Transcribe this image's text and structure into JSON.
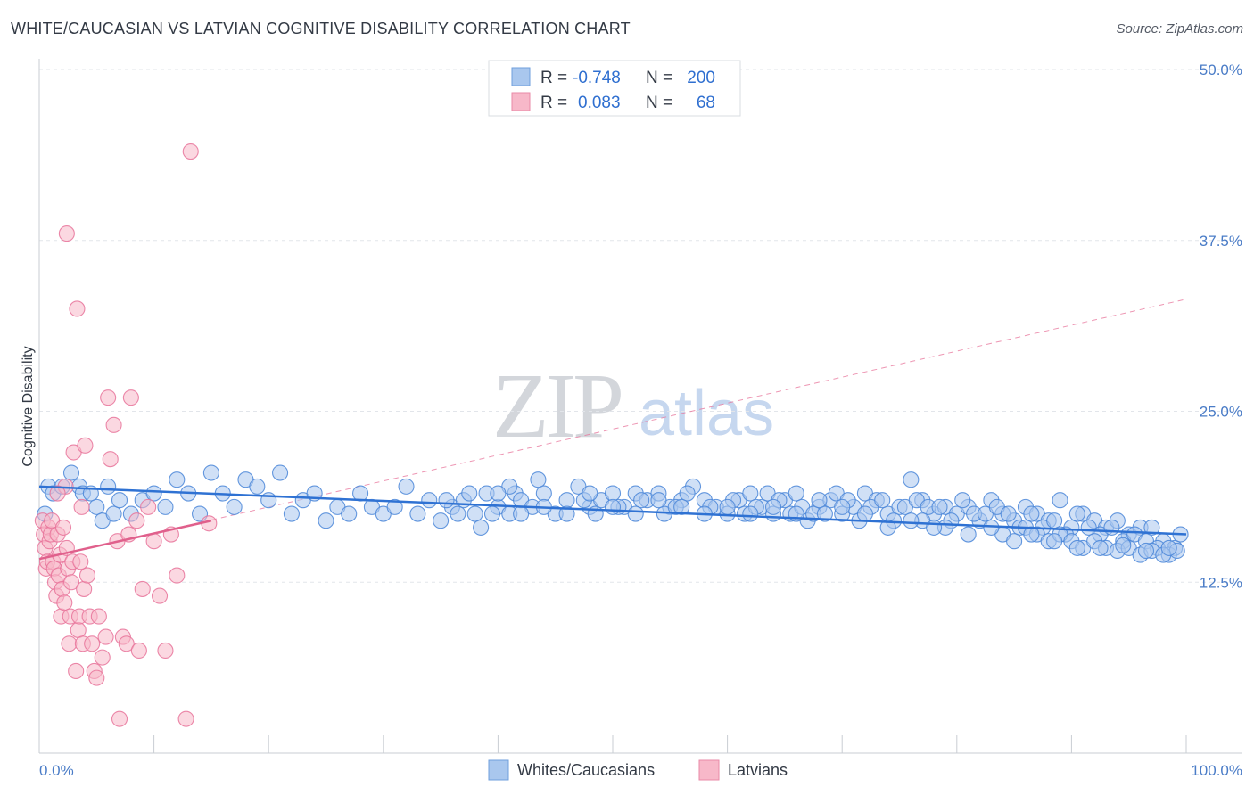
{
  "header": {
    "title": "WHITE/CAUCASIAN VS LATVIAN COGNITIVE DISABILITY CORRELATION CHART",
    "source": "Source: ZipAtlas.com"
  },
  "watermark": {
    "zip": "ZIP",
    "atlas": "atlas"
  },
  "legend": {
    "rows": [
      {
        "r_label": "R =",
        "r_value": "-0.748",
        "n_label": "N =",
        "n_value": "200",
        "color": "#a9c7ee"
      },
      {
        "r_label": "R =",
        "r_value": "0.083",
        "n_label": "N =",
        "n_value": "68",
        "color": "#f7b8c9"
      }
    ]
  },
  "bottom_legend": [
    {
      "label": "Whites/Caucasians",
      "color": "#a9c7ee"
    },
    {
      "label": "Latvians",
      "color": "#f7b8c9"
    }
  ],
  "chart_data": {
    "type": "scatter",
    "title": "WHITE/CAUCASIAN VS LATVIAN COGNITIVE DISABILITY CORRELATION CHART",
    "xlabel": "",
    "ylabel": "Cognitive Disability",
    "xlim": [
      0,
      100
    ],
    "ylim": [
      0,
      50
    ],
    "x_tick_labels": [
      "0.0%",
      "100.0%"
    ],
    "y_ticks": [
      12.5,
      25.0,
      37.5,
      50.0
    ],
    "y_tick_labels": [
      "12.5%",
      "25.0%",
      "37.5%",
      "50.0%"
    ],
    "grid": "horizontal dashed",
    "legend_placement": "top-center",
    "colors": {
      "whites": "#4a86d8",
      "whites_fill": "#a9c7ee",
      "latvians": "#e8739a",
      "latvians_fill": "#f7b8c9"
    },
    "series": [
      {
        "name": "Whites/Caucasians",
        "trend": {
          "x": [
            0,
            100
          ],
          "y": [
            19.5,
            16.0
          ],
          "style": "solid"
        },
        "points": [
          [
            0.5,
            17.5
          ],
          [
            0.8,
            19.5
          ],
          [
            1.2,
            19.0
          ],
          [
            2.0,
            19.5
          ],
          [
            2.8,
            20.5
          ],
          [
            3.5,
            19.5
          ],
          [
            3.8,
            19.0
          ],
          [
            4.5,
            19.0
          ],
          [
            5.0,
            18.0
          ],
          [
            5.5,
            17.0
          ],
          [
            6.0,
            19.5
          ],
          [
            6.5,
            17.5
          ],
          [
            7.0,
            18.5
          ],
          [
            8.0,
            17.5
          ],
          [
            9.0,
            18.5
          ],
          [
            10.0,
            19.0
          ],
          [
            11.0,
            18.0
          ],
          [
            12.0,
            20.0
          ],
          [
            13.0,
            19.0
          ],
          [
            14.0,
            17.5
          ],
          [
            15.0,
            20.5
          ],
          [
            16.0,
            19.0
          ],
          [
            17.0,
            18.0
          ],
          [
            18.0,
            20.0
          ],
          [
            19.0,
            19.5
          ],
          [
            20.0,
            18.5
          ],
          [
            21.0,
            20.5
          ],
          [
            22.0,
            17.5
          ],
          [
            23.0,
            18.5
          ],
          [
            24.0,
            19.0
          ],
          [
            25.0,
            17.0
          ],
          [
            26.0,
            18.0
          ],
          [
            27.0,
            17.5
          ],
          [
            28.0,
            19.0
          ],
          [
            29.0,
            18.0
          ],
          [
            30.0,
            17.5
          ],
          [
            31.0,
            18.0
          ],
          [
            32.0,
            19.5
          ],
          [
            33.0,
            17.5
          ],
          [
            34.0,
            18.5
          ],
          [
            35.0,
            17.0
          ],
          [
            36.0,
            18.0
          ],
          [
            37.0,
            18.5
          ],
          [
            38.0,
            17.5
          ],
          [
            38.5,
            16.5
          ],
          [
            39.0,
            19.0
          ],
          [
            40.0,
            18.0
          ],
          [
            41.0,
            17.5
          ],
          [
            41.5,
            19.0
          ],
          [
            42.0,
            18.5
          ],
          [
            43.0,
            18.0
          ],
          [
            44.0,
            19.0
          ],
          [
            45.0,
            17.5
          ],
          [
            46.0,
            18.5
          ],
          [
            47.0,
            19.5
          ],
          [
            48.0,
            18.0
          ],
          [
            49.0,
            18.5
          ],
          [
            50.0,
            19.0
          ],
          [
            51.0,
            18.0
          ],
          [
            52.0,
            19.0
          ],
          [
            53.0,
            18.5
          ],
          [
            54.0,
            19.0
          ],
          [
            55.0,
            18.0
          ],
          [
            56.0,
            18.5
          ],
          [
            57.0,
            19.5
          ],
          [
            58.0,
            18.5
          ],
          [
            59.0,
            18.0
          ],
          [
            60.0,
            17.5
          ],
          [
            61.0,
            18.5
          ],
          [
            62.0,
            19.0
          ],
          [
            63.0,
            18.0
          ],
          [
            64.0,
            17.5
          ],
          [
            65.0,
            18.5
          ],
          [
            66.0,
            19.0
          ],
          [
            67.0,
            17.0
          ],
          [
            68.0,
            18.0
          ],
          [
            69.0,
            18.5
          ],
          [
            70.0,
            17.5
          ],
          [
            71.0,
            18.0
          ],
          [
            72.0,
            19.0
          ],
          [
            73.0,
            18.5
          ],
          [
            74.0,
            17.5
          ],
          [
            75.0,
            18.0
          ],
          [
            76.0,
            20.0
          ],
          [
            77.0,
            18.5
          ],
          [
            78.0,
            17.5
          ],
          [
            79.0,
            18.0
          ],
          [
            80.0,
            17.5
          ],
          [
            81.0,
            18.0
          ],
          [
            82.0,
            17.0
          ],
          [
            83.0,
            18.5
          ],
          [
            84.0,
            17.5
          ],
          [
            85.0,
            17.0
          ],
          [
            86.0,
            18.0
          ],
          [
            87.0,
            17.5
          ],
          [
            88.0,
            17.0
          ],
          [
            89.0,
            18.5
          ],
          [
            90.0,
            16.5
          ],
          [
            91.0,
            17.5
          ],
          [
            92.0,
            17.0
          ],
          [
            93.0,
            16.5
          ],
          [
            94.0,
            17.0
          ],
          [
            95.0,
            16.0
          ],
          [
            96.0,
            16.5
          ],
          [
            97.0,
            16.5
          ],
          [
            98.0,
            15.5
          ],
          [
            99.0,
            15.0
          ],
          [
            99.5,
            16.0
          ],
          [
            41.0,
            19.5
          ],
          [
            43.5,
            20.0
          ],
          [
            47.5,
            18.5
          ],
          [
            48.5,
            17.5
          ],
          [
            50.5,
            18.0
          ],
          [
            52.5,
            18.5
          ],
          [
            54.5,
            17.5
          ],
          [
            55.5,
            18.0
          ],
          [
            56.5,
            19.0
          ],
          [
            58.5,
            18.0
          ],
          [
            60.5,
            18.5
          ],
          [
            61.5,
            17.5
          ],
          [
            62.5,
            18.0
          ],
          [
            63.5,
            19.0
          ],
          [
            64.5,
            18.5
          ],
          [
            65.5,
            17.5
          ],
          [
            66.5,
            18.0
          ],
          [
            67.5,
            17.5
          ],
          [
            68.5,
            17.5
          ],
          [
            69.5,
            19.0
          ],
          [
            70.5,
            18.5
          ],
          [
            71.5,
            17.0
          ],
          [
            72.5,
            18.0
          ],
          [
            73.5,
            18.5
          ],
          [
            74.5,
            17.0
          ],
          [
            75.5,
            18.0
          ],
          [
            76.5,
            18.5
          ],
          [
            77.5,
            18.0
          ],
          [
            78.5,
            18.0
          ],
          [
            79.5,
            17.0
          ],
          [
            80.5,
            18.5
          ],
          [
            81.5,
            17.5
          ],
          [
            82.5,
            17.5
          ],
          [
            83.5,
            18.0
          ],
          [
            84.5,
            17.5
          ],
          [
            85.5,
            16.5
          ],
          [
            86.5,
            17.5
          ],
          [
            87.5,
            16.5
          ],
          [
            88.5,
            17.0
          ],
          [
            89.5,
            16.0
          ],
          [
            90.5,
            17.5
          ],
          [
            91.5,
            16.5
          ],
          [
            92.5,
            16.0
          ],
          [
            93.5,
            16.5
          ],
          [
            94.5,
            15.5
          ],
          [
            95.5,
            16.0
          ],
          [
            96.5,
            15.5
          ],
          [
            97.5,
            15.0
          ],
          [
            98.5,
            14.5
          ],
          [
            99.2,
            14.8
          ],
          [
            84.0,
            16.0
          ],
          [
            85.0,
            15.5
          ],
          [
            86.0,
            16.5
          ],
          [
            87.0,
            16.0
          ],
          [
            88.0,
            15.5
          ],
          [
            89.0,
            16.0
          ],
          [
            90.0,
            15.5
          ],
          [
            91.0,
            15.0
          ],
          [
            92.0,
            15.5
          ],
          [
            93.0,
            15.0
          ],
          [
            94.0,
            14.8
          ],
          [
            95.0,
            15.0
          ],
          [
            96.0,
            14.5
          ],
          [
            97.0,
            14.8
          ],
          [
            98.0,
            14.5
          ],
          [
            86.5,
            16.0
          ],
          [
            88.5,
            15.5
          ],
          [
            90.5,
            15.0
          ],
          [
            92.5,
            15.0
          ],
          [
            94.5,
            15.2
          ],
          [
            96.5,
            14.8
          ],
          [
            98.5,
            15.0
          ],
          [
            77.0,
            17.0
          ],
          [
            79.0,
            16.5
          ],
          [
            81.0,
            16.0
          ],
          [
            83.0,
            16.5
          ],
          [
            72.0,
            17.5
          ],
          [
            74.0,
            16.5
          ],
          [
            76.0,
            17.0
          ],
          [
            78.0,
            16.5
          ],
          [
            70.0,
            18.0
          ],
          [
            68.0,
            18.5
          ],
          [
            66.0,
            17.5
          ],
          [
            64.0,
            18.0
          ],
          [
            62.0,
            17.5
          ],
          [
            60.0,
            18.0
          ],
          [
            58.0,
            17.5
          ],
          [
            56.0,
            18.0
          ],
          [
            54.0,
            18.5
          ],
          [
            52.0,
            17.5
          ],
          [
            50.0,
            18.0
          ],
          [
            48.0,
            19.0
          ],
          [
            46.0,
            17.5
          ],
          [
            44.0,
            18.0
          ],
          [
            42.0,
            17.5
          ],
          [
            40.0,
            19.0
          ],
          [
            39.5,
            17.5
          ],
          [
            37.5,
            19.0
          ],
          [
            36.5,
            17.5
          ],
          [
            35.5,
            18.5
          ]
        ]
      },
      {
        "name": "Latvians",
        "trend": {
          "x": [
            0,
            15
          ],
          "y": [
            14.2,
            17.0
          ],
          "style": "solid"
        },
        "trend_extended": {
          "x": [
            0,
            100
          ],
          "y": [
            14.2,
            33.2
          ],
          "style": "dashed"
        },
        "points": [
          [
            0.3,
            17.0
          ],
          [
            0.4,
            16.0
          ],
          [
            0.5,
            15.0
          ],
          [
            0.6,
            13.5
          ],
          [
            0.7,
            14.0
          ],
          [
            0.8,
            16.5
          ],
          [
            0.9,
            15.5
          ],
          [
            1.0,
            16.0
          ],
          [
            1.1,
            17.0
          ],
          [
            1.2,
            14.0
          ],
          [
            1.3,
            13.5
          ],
          [
            1.4,
            12.5
          ],
          [
            1.5,
            11.5
          ],
          [
            1.6,
            16.0
          ],
          [
            1.7,
            13.0
          ],
          [
            1.8,
            14.5
          ],
          [
            1.9,
            10.0
          ],
          [
            2.0,
            12.0
          ],
          [
            2.1,
            16.5
          ],
          [
            2.2,
            11.0
          ],
          [
            2.3,
            19.5
          ],
          [
            2.4,
            15.0
          ],
          [
            2.5,
            13.5
          ],
          [
            2.6,
            8.0
          ],
          [
            2.7,
            10.0
          ],
          [
            2.8,
            12.5
          ],
          [
            2.9,
            14.0
          ],
          [
            3.0,
            22.0
          ],
          [
            3.2,
            6.0
          ],
          [
            3.4,
            9.0
          ],
          [
            3.5,
            10.0
          ],
          [
            3.6,
            14.0
          ],
          [
            3.7,
            18.0
          ],
          [
            3.8,
            8.0
          ],
          [
            3.9,
            12.0
          ],
          [
            4.0,
            22.5
          ],
          [
            4.2,
            13.0
          ],
          [
            4.4,
            10.0
          ],
          [
            4.6,
            8.0
          ],
          [
            4.8,
            6.0
          ],
          [
            5.0,
            5.5
          ],
          [
            5.2,
            10.0
          ],
          [
            5.5,
            7.0
          ],
          [
            5.8,
            8.5
          ],
          [
            6.0,
            26.0
          ],
          [
            6.2,
            21.5
          ],
          [
            6.5,
            24.0
          ],
          [
            6.8,
            15.5
          ],
          [
            7.0,
            2.5
          ],
          [
            7.3,
            8.5
          ],
          [
            7.6,
            8.0
          ],
          [
            7.8,
            16.0
          ],
          [
            8.0,
            26.0
          ],
          [
            8.5,
            17.0
          ],
          [
            8.7,
            7.5
          ],
          [
            9.0,
            12.0
          ],
          [
            9.5,
            18.0
          ],
          [
            10.0,
            15.5
          ],
          [
            10.5,
            11.5
          ],
          [
            11.0,
            7.5
          ],
          [
            11.5,
            16.0
          ],
          [
            12.0,
            13.0
          ],
          [
            12.8,
            2.5
          ],
          [
            13.2,
            44.0
          ],
          [
            14.8,
            16.8
          ],
          [
            3.3,
            32.5
          ],
          [
            2.4,
            38.0
          ],
          [
            1.6,
            19.0
          ]
        ]
      }
    ]
  }
}
